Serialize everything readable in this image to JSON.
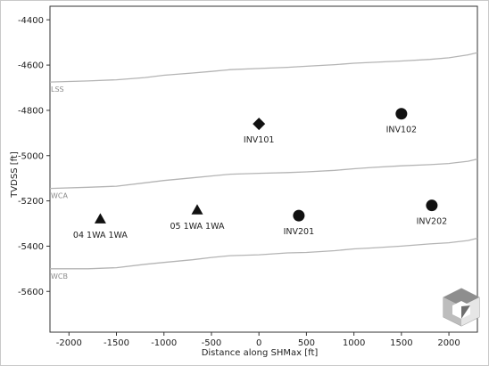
{
  "chart_data": {
    "type": "scatter",
    "title": "",
    "xlabel": "Distance along SHMax [ft]",
    "ylabel": "TVDSS [ft]",
    "xlim": [
      -2200,
      2300
    ],
    "ylim": [
      -5780,
      -4340
    ],
    "y_inverted": true,
    "grid": false,
    "x_ticks": [
      -2000,
      -1500,
      -1000,
      -500,
      0,
      500,
      1000,
      1500,
      2000
    ],
    "y_ticks": [
      -4400,
      -4600,
      -4800,
      -5000,
      -5200,
      -5400,
      -5600
    ],
    "horizons": [
      {
        "name": "LSS",
        "x": [
          -2200,
          -1800,
          -1500,
          -1200,
          -1000,
          -700,
          -500,
          -300,
          0,
          300,
          500,
          800,
          1000,
          1200,
          1500,
          1800,
          2000,
          2200,
          2300
        ],
        "y": [
          -4675,
          -4670,
          -4665,
          -4655,
          -4645,
          -4635,
          -4628,
          -4620,
          -4615,
          -4610,
          -4605,
          -4598,
          -4592,
          -4588,
          -4582,
          -4575,
          -4568,
          -4555,
          -4545
        ]
      },
      {
        "name": "WCA",
        "x": [
          -2200,
          -1800,
          -1500,
          -1200,
          -1000,
          -700,
          -500,
          -300,
          0,
          300,
          500,
          800,
          1000,
          1200,
          1500,
          1800,
          2000,
          2200,
          2300
        ],
        "y": [
          -5145,
          -5140,
          -5135,
          -5120,
          -5110,
          -5098,
          -5090,
          -5082,
          -5078,
          -5075,
          -5072,
          -5065,
          -5058,
          -5052,
          -5045,
          -5040,
          -5035,
          -5025,
          -5015
        ]
      },
      {
        "name": "WCB",
        "x": [
          -2200,
          -1800,
          -1500,
          -1200,
          -1000,
          -700,
          -500,
          -300,
          0,
          300,
          500,
          800,
          1000,
          1200,
          1500,
          1800,
          2000,
          2200,
          2300
        ],
        "y": [
          -5500,
          -5500,
          -5495,
          -5480,
          -5472,
          -5460,
          -5450,
          -5442,
          -5438,
          -5430,
          -5428,
          -5420,
          -5412,
          -5408,
          -5400,
          -5390,
          -5385,
          -5375,
          -5365
        ]
      }
    ],
    "points": [
      {
        "label": "04 1WA 1WA",
        "marker": "triangle",
        "x": -1670,
        "y": -5280
      },
      {
        "label": "05 1WA 1WA",
        "marker": "triangle",
        "x": -650,
        "y": -5240
      },
      {
        "label": "INV101",
        "marker": "diamond",
        "x": 0,
        "y": -4860
      },
      {
        "label": "INV102",
        "marker": "circle",
        "x": 1500,
        "y": -4815
      },
      {
        "label": "INV201",
        "marker": "circle",
        "x": 420,
        "y": -5265
      },
      {
        "label": "INV202",
        "marker": "circle",
        "x": 1820,
        "y": -5220
      }
    ],
    "colors": {
      "marker": "#111111",
      "horizon_line": "#b4b4b4",
      "horizon_label": "#8c8c8c",
      "axis": "#333333"
    }
  },
  "logo": {
    "icon": "cube-logo-icon"
  }
}
